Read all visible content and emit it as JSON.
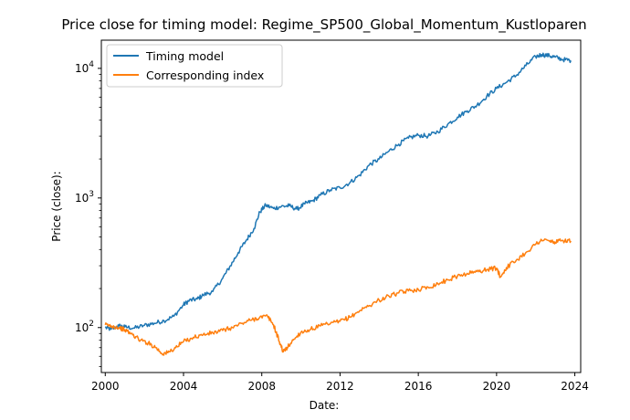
{
  "chart_data": {
    "type": "line",
    "title": "Price close for timing model: Regime_SP500_Global_Momentum_Kustloparen",
    "xlabel": "Date:",
    "ylabel": "Price (close):",
    "yscale": "log",
    "xlim": [
      1999.8,
      2024.3
    ],
    "ylim": [
      45,
      16500
    ],
    "x_ticks": [
      2000,
      2004,
      2008,
      2012,
      2016,
      2020,
      2024
    ],
    "x_tick_labels": [
      "2000",
      "2004",
      "2008",
      "2012",
      "2016",
      "2020",
      "2024"
    ],
    "y_ticks": [
      100,
      1000,
      10000
    ],
    "y_tick_label_base": "10",
    "y_tick_label_exps": [
      "2",
      "3",
      "4"
    ],
    "legend_position": "upper-left",
    "series": [
      {
        "name": "Timing model",
        "color": "#1f77b4",
        "x": [
          2000.0,
          2000.3,
          2000.7,
          2001.0,
          2001.5,
          2002.0,
          2002.5,
          2003.0,
          2003.5,
          2004.0,
          2004.3,
          2004.7,
          2005.0,
          2005.5,
          2006.0,
          2006.4,
          2006.8,
          2007.2,
          2007.6,
          2007.9,
          2008.2,
          2008.6,
          2009.0,
          2009.4,
          2009.8,
          2010.2,
          2010.6,
          2011.0,
          2011.5,
          2012.0,
          2012.5,
          2013.0,
          2013.5,
          2014.0,
          2014.5,
          2015.0,
          2015.5,
          2016.0,
          2016.5,
          2017.0,
          2017.5,
          2018.0,
          2018.5,
          2019.0,
          2019.5,
          2020.0,
          2020.5,
          2021.0,
          2021.5,
          2022.0,
          2022.3,
          2022.7,
          2023.0,
          2023.4,
          2023.8
        ],
        "values": [
          100,
          97,
          103,
          101,
          99,
          104,
          108,
          113,
          122,
          150,
          162,
          166,
          178,
          190,
          240,
          300,
          380,
          470,
          580,
          780,
          880,
          830,
          860,
          870,
          820,
          900,
          950,
          1050,
          1150,
          1200,
          1310,
          1500,
          1800,
          2000,
          2300,
          2600,
          2900,
          3050,
          3000,
          3250,
          3700,
          4200,
          4700,
          5200,
          6100,
          7000,
          7800,
          8800,
          10500,
          12300,
          12800,
          12500,
          12200,
          11700,
          11500
        ]
      },
      {
        "name": "Corresponding index",
        "color": "#ff7f0e",
        "x": [
          2000.0,
          2000.3,
          2000.7,
          2001.0,
          2001.4,
          2001.8,
          2002.2,
          2002.6,
          2002.9,
          2003.2,
          2003.6,
          2004.0,
          2004.5,
          2005.0,
          2005.5,
          2006.0,
          2006.5,
          2007.0,
          2007.5,
          2007.9,
          2008.3,
          2008.6,
          2008.9,
          2009.1,
          2009.3,
          2009.6,
          2010.0,
          2010.5,
          2011.0,
          2011.5,
          2012.0,
          2012.5,
          2013.0,
          2013.5,
          2014.0,
          2014.5,
          2015.0,
          2015.5,
          2016.0,
          2016.5,
          2017.0,
          2017.5,
          2018.0,
          2018.5,
          2019.0,
          2019.5,
          2020.0,
          2020.2,
          2020.5,
          2021.0,
          2021.5,
          2022.0,
          2022.3,
          2022.7,
          2023.0,
          2023.4,
          2023.8
        ],
        "values": [
          105,
          103,
          100,
          96,
          88,
          80,
          76,
          70,
          63,
          64,
          70,
          78,
          84,
          88,
          91,
          95,
          100,
          108,
          115,
          120,
          122,
          105,
          78,
          65,
          70,
          80,
          92,
          97,
          103,
          107,
          112,
          120,
          135,
          148,
          163,
          175,
          185,
          192,
          197,
          205,
          218,
          233,
          250,
          262,
          270,
          280,
          288,
          245,
          290,
          330,
          380,
          440,
          475,
          465,
          455,
          470,
          465
        ]
      }
    ]
  }
}
